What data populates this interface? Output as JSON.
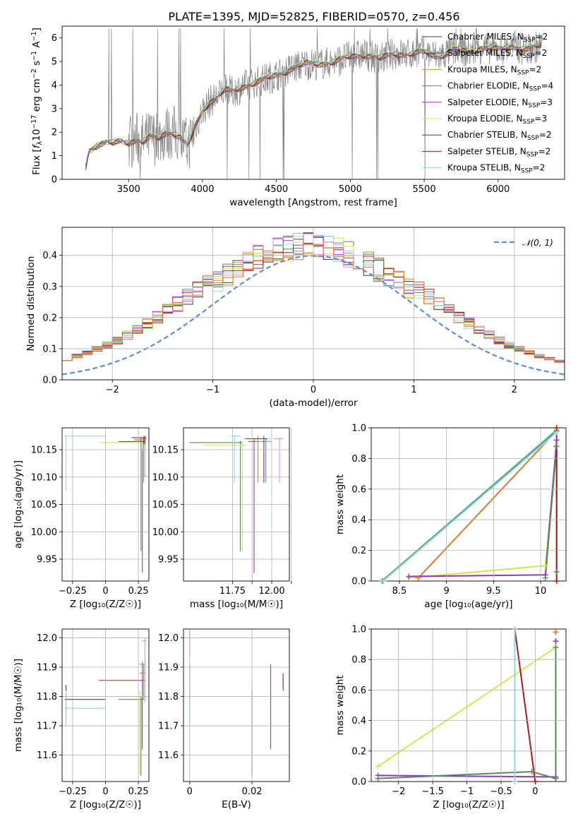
{
  "title": "PLATE=1395, MJD=52825, FIBERID=0570, z=0.456",
  "colors": {
    "chabrier_miles": "#3b3b3b",
    "salpeter_miles": "#555555",
    "kroupa_miles": "#d4862a",
    "chabrier_elodie": "#5a8a5a",
    "salpeter_elodie": "#9b30c8",
    "kroupa_elodie": "#d4e84a",
    "chabrier_stelib": "#444444",
    "salpeter_stelib": "#b01818",
    "kroupa_stelib": "#8ad8e8",
    "data": "#808080",
    "gaussian": "#5b8dd9",
    "orange": "#e07830",
    "pink": "#e890c8",
    "grid": "#b0b0b0"
  },
  "legend_spectrum": [
    {
      "label": "Chabrier MILES, N",
      "sub": "SSP",
      "tail": "=2",
      "color": "#3b3b3b"
    },
    {
      "label": "Salpeter MILES, N",
      "sub": "SSP",
      "tail": "=2",
      "color": "#555555"
    },
    {
      "label": "Kroupa MILES, N",
      "sub": "SSP",
      "tail": "=2",
      "color": "#d4862a"
    },
    {
      "label": "Chabrier ELODIE, N",
      "sub": "SSP",
      "tail": "=4",
      "color": "#5a8a5a"
    },
    {
      "label": "Salpeter ELODIE, N",
      "sub": "SSP",
      "tail": "=3",
      "color": "#9b30c8"
    },
    {
      "label": "Kroupa ELODIE, N",
      "sub": "SSP",
      "tail": "=3",
      "color": "#d4e84a"
    },
    {
      "label": "Chabrier STELIB, N",
      "sub": "SSP",
      "tail": "=2",
      "color": "#444444"
    },
    {
      "label": "Salpeter STELIB, N",
      "sub": "SSP",
      "tail": "=2",
      "color": "#b01818"
    },
    {
      "label": "Kroupa STELIB, N",
      "sub": "SSP",
      "tail": "=2",
      "color": "#8ad8e8"
    }
  ],
  "legend_hist": {
    "label": "𝒩(0, 1)"
  },
  "chart_data": [
    {
      "id": "spectrum",
      "type": "line",
      "xlabel": "wavelength [Angstrom, rest frame]",
      "ylabel": "Flux [f_λ 10^-17 erg cm^-2 s^-1 A^-1]",
      "xlim": [
        3050,
        6450
      ],
      "ylim": [
        0,
        6.5
      ],
      "xticks": [
        3500,
        4000,
        4500,
        5000,
        5500,
        6000
      ],
      "yticks": [
        0,
        1,
        2,
        3,
        4,
        5,
        6
      ],
      "model_x": [
        3200,
        3230,
        3280,
        3350,
        3400,
        3450,
        3500,
        3550,
        3600,
        3650,
        3700,
        3750,
        3800,
        3850,
        3900,
        3950,
        4000,
        4050,
        4100,
        4150,
        4200,
        4300,
        4400,
        4500,
        4600,
        4700,
        4800,
        4900,
        5000,
        5100,
        5200,
        5300,
        5400,
        5500,
        5600,
        5700,
        5800,
        5900,
        6000,
        6100,
        6200,
        6300
      ],
      "model_y": [
        0.1,
        1.2,
        1.45,
        1.6,
        1.5,
        1.6,
        1.55,
        1.7,
        1.6,
        1.8,
        1.7,
        1.95,
        2.0,
        1.8,
        1.4,
        2.2,
        2.9,
        3.3,
        3.5,
        3.8,
        3.7,
        4.0,
        4.2,
        4.4,
        4.7,
        4.9,
        4.9,
        5.0,
        5.2,
        5.3,
        5.1,
        5.35,
        5.3,
        5.4,
        5.2,
        5.5,
        5.4,
        5.6,
        5.5,
        5.65,
        5.5,
        5.7
      ],
      "series": [
        {
          "name": "Chabrier MILES, NSSP=2",
          "offset": 0.0
        },
        {
          "name": "Salpeter MILES, NSSP=2",
          "offset": 0.03
        },
        {
          "name": "Kroupa MILES, NSSP=2",
          "offset": -0.04
        },
        {
          "name": "Chabrier ELODIE, NSSP=4",
          "offset": 0.05
        },
        {
          "name": "Salpeter ELODIE, NSSP=3",
          "offset": -0.02
        },
        {
          "name": "Kroupa ELODIE, NSSP=3",
          "offset": 0.06
        },
        {
          "name": "Chabrier STELIB, NSSP=2",
          "offset": -0.05
        },
        {
          "name": "Salpeter STELIB, NSSP=2",
          "offset": 0.02
        },
        {
          "name": "Kroupa STELIB, NSSP=2",
          "offset": 0.08
        }
      ]
    },
    {
      "id": "residuals",
      "type": "histogram",
      "xlabel": "(data-model)/error",
      "ylabel": "Normed distribution",
      "xlim": [
        -2.5,
        2.5
      ],
      "ylim": [
        0,
        0.49
      ],
      "xticks": [
        -2,
        -1,
        0,
        1,
        2
      ],
      "yticks": [
        0.0,
        0.1,
        0.2,
        0.3,
        0.4
      ],
      "bin_width": 0.1,
      "gaussian": {
        "mu": 0,
        "sigma": 1
      },
      "legend_loc": "upper right"
    },
    {
      "id": "age-vs-Z",
      "type": "errorbar",
      "xlabel": "Z [log10(Z/Z☉)]",
      "ylabel": "age [log10(age/yr)]",
      "xlim": [
        -0.33,
        0.33
      ],
      "ylim": [
        9.91,
        10.19
      ],
      "xticks": [
        -0.25,
        0.0,
        0.25
      ],
      "yticks": [
        9.95,
        10.0,
        10.05,
        10.1,
        10.15
      ],
      "points": [
        {
          "x": 0.27,
          "y": 10.168,
          "ylo": 9.965,
          "yhi": 10.17,
          "xlo": 0.22,
          "xhi": 0.29,
          "color": "#5a8a5a"
        },
        {
          "x": 0.28,
          "y": 10.165,
          "ylo": 9.925,
          "yhi": 10.17,
          "xlo": 0.25,
          "xhi": 0.29,
          "color": "#9b30c8"
        },
        {
          "x": 0.29,
          "y": 10.17,
          "ylo": 10.09,
          "yhi": 10.175,
          "xlo": 0.26,
          "xhi": 0.3,
          "color": "#e07830"
        },
        {
          "x": 0.3,
          "y": 10.168,
          "ylo": 10.1,
          "yhi": 10.175,
          "xlo": 0.27,
          "xhi": 0.31,
          "color": "#e890c8"
        },
        {
          "x": 0.28,
          "y": 10.163,
          "ylo": 10.15,
          "yhi": 10.17,
          "xlo": -0.05,
          "xhi": 0.3,
          "color": "#d4e84a"
        },
        {
          "x": 0.29,
          "y": 10.165,
          "ylo": 10.16,
          "yhi": 10.17,
          "xlo": 0.1,
          "xhi": 0.3,
          "color": "#444444"
        },
        {
          "x": 0.3,
          "y": 10.172,
          "ylo": 10.16,
          "yhi": 10.175,
          "xlo": 0.2,
          "xhi": 0.31,
          "color": "#b01818"
        },
        {
          "x": -0.3,
          "y": 10.175,
          "ylo": 10.075,
          "yhi": 10.177,
          "xlo": -0.31,
          "xhi": 0.0,
          "color": "#8ad8e8"
        },
        {
          "x": -0.3,
          "y": 10.175,
          "ylo": 10.11,
          "yhi": 10.177,
          "xlo": -0.31,
          "xhi": 0.0,
          "color": "#aadde0"
        }
      ]
    },
    {
      "id": "age-vs-mass",
      "type": "errorbar",
      "xlabel": "mass [log10(M/M☉)]",
      "ylabel": "",
      "xlim": [
        11.5,
        12.04
      ],
      "ylim": [
        9.91,
        10.19
      ],
      "xticks": [
        11.75,
        11.85,
        11.95,
        12.05
      ],
      "xticklabels": [
        "11.75",
        "",
        "12.00",
        ""
      ],
      "yticks": [
        9.95,
        10.0,
        10.05,
        10.1,
        10.15
      ],
      "points": [
        {
          "x": 11.79,
          "y": 10.163,
          "ylo": 9.965,
          "yhi": 10.166,
          "xlo": 11.53,
          "xhi": 11.8,
          "color": "#5a8a5a"
        },
        {
          "x": 11.86,
          "y": 10.165,
          "ylo": 9.925,
          "yhi": 10.17,
          "xlo": 11.83,
          "xhi": 11.88,
          "color": "#9b30c8"
        },
        {
          "x": 11.88,
          "y": 10.17,
          "ylo": 10.09,
          "yhi": 10.175,
          "xlo": 11.81,
          "xhi": 11.9,
          "color": "#e07830"
        },
        {
          "x": 11.99,
          "y": 10.17,
          "ylo": 10.09,
          "yhi": 10.172,
          "xlo": 11.96,
          "xhi": 12.01,
          "color": "#e890c8"
        },
        {
          "x": 11.8,
          "y": 10.158,
          "ylo": 9.965,
          "yhi": 10.162,
          "xlo": 11.6,
          "xhi": 11.82,
          "color": "#d4e84a"
        },
        {
          "x": 11.92,
          "y": 10.165,
          "ylo": 10.09,
          "yhi": 10.17,
          "xlo": 11.87,
          "xhi": 11.95,
          "color": "#5b8dd9"
        },
        {
          "x": 11.91,
          "y": 10.17,
          "ylo": 10.09,
          "yhi": 10.175,
          "xlo": 11.82,
          "xhi": 11.93,
          "color": "#b01818"
        },
        {
          "x": 11.76,
          "y": 10.175,
          "ylo": 10.09,
          "yhi": 10.177,
          "xlo": 11.74,
          "xhi": 11.79,
          "color": "#8ad8e8"
        }
      ]
    },
    {
      "id": "weight-vs-age",
      "type": "line",
      "xlabel": "age [log10(age/yr)]",
      "ylabel": "mass weight",
      "xlim": [
        8.2,
        10.27
      ],
      "ylim": [
        0,
        1.0
      ],
      "xticks": [
        8.5,
        9.0,
        9.5,
        10.0
      ],
      "yticks": [
        0.0,
        0.2,
        0.4,
        0.6,
        0.8,
        1.0
      ],
      "series": [
        {
          "color": "#e07830",
          "x": [
            8.7,
            10.17
          ],
          "y": [
            0.02,
            0.98
          ]
        },
        {
          "color": "#8ad8e8",
          "x": [
            8.31,
            10.17
          ],
          "y": [
            0.0,
            0.99
          ]
        },
        {
          "color": "#5a8a5a",
          "x": [
            8.32,
            10.17
          ],
          "y": [
            0.0,
            0.98
          ]
        },
        {
          "color": "#aadde0",
          "x": [
            8.33,
            10.17
          ],
          "y": [
            0.0,
            0.97
          ]
        },
        {
          "color": "#d4e84a",
          "x": [
            8.6,
            10.05,
            10.17
          ],
          "y": [
            0.02,
            0.1,
            0.88
          ]
        },
        {
          "color": "#9b30c8",
          "x": [
            8.6,
            10.05,
            10.17
          ],
          "y": [
            0.03,
            0.04,
            0.92
          ]
        },
        {
          "color": "#5a8a5a",
          "x": [
            10.05,
            10.17,
            10.17
          ],
          "y": [
            0.02,
            0.88,
            0.06
          ]
        },
        {
          "color": "#b01818",
          "x": [
            10.17,
            10.17
          ],
          "y": [
            0.0,
            1.0
          ]
        }
      ]
    },
    {
      "id": "mass-vs-Z",
      "type": "errorbar",
      "xlabel": "Z [log10(Z/Z☉)]",
      "ylabel": "mass [log10(M/M☉)]",
      "xlim": [
        -0.33,
        0.33
      ],
      "ylim": [
        11.51,
        12.03
      ],
      "xticks": [
        -0.25,
        0.0,
        0.25
      ],
      "yticks": [
        11.6,
        11.7,
        11.8,
        11.9,
        12.0
      ],
      "points": [
        {
          "x": 0.27,
          "y": 11.79,
          "ylo": 11.53,
          "yhi": 11.8,
          "xlo": 0.1,
          "xhi": 0.29,
          "color": "#5a8a5a"
        },
        {
          "x": 0.28,
          "y": 11.855,
          "ylo": 11.62,
          "yhi": 11.91,
          "xlo": -0.05,
          "xhi": 0.3,
          "color": "#9b30c8"
        },
        {
          "x": 0.29,
          "y": 11.88,
          "ylo": 11.79,
          "yhi": 11.91,
          "xlo": 0.26,
          "xhi": 0.3,
          "color": "#e07830"
        },
        {
          "x": 0.3,
          "y": 11.99,
          "ylo": 11.78,
          "yhi": 12.0,
          "xlo": 0.28,
          "xhi": 0.31,
          "color": "#e890c8"
        },
        {
          "x": 0.26,
          "y": 11.8,
          "ylo": 11.53,
          "yhi": 11.82,
          "xlo": 0.1,
          "xhi": 0.29,
          "color": "#d4e84a"
        },
        {
          "x": 0.28,
          "y": 11.91,
          "ylo": 11.87,
          "yhi": 11.92,
          "xlo": 0.26,
          "xhi": 0.3,
          "color": "#5b8dd9"
        },
        {
          "x": -0.3,
          "y": 11.79,
          "ylo": 11.74,
          "yhi": 11.84,
          "xlo": -0.31,
          "xhi": 0.0,
          "color": "#444444"
        },
        {
          "x": -0.3,
          "y": 11.76,
          "ylo": 11.7,
          "yhi": 11.82,
          "xlo": -0.31,
          "xhi": 0.0,
          "color": "#8ad8e8"
        }
      ]
    },
    {
      "id": "mass-vs-ebv",
      "type": "errorbar",
      "xlabel": "E(B-V)",
      "ylabel": "",
      "xlim": [
        -0.002,
        0.032
      ],
      "ylim": [
        11.51,
        12.03
      ],
      "xticks": [
        0.0,
        0.02
      ],
      "yticks": [
        11.6,
        11.7,
        11.8,
        11.9,
        12.0
      ],
      "points": [
        {
          "x": 0.0,
          "y": 11.99,
          "ylo": 11.93,
          "yhi": 12.03,
          "color": "#e890c8"
        },
        {
          "x": 0.0,
          "y": 11.88,
          "ylo": 11.79,
          "yhi": 11.91,
          "color": "#e07830"
        },
        {
          "x": 0.0,
          "y": 11.76,
          "ylo": 11.7,
          "yhi": 11.84,
          "color": "#8ad8e8"
        },
        {
          "x": 0.02,
          "y": 11.8,
          "ylo": 11.53,
          "yhi": 11.85,
          "color": "#d4e84a"
        },
        {
          "x": 0.02,
          "y": 11.78,
          "ylo": 11.53,
          "yhi": 11.82,
          "color": "#5a8a5a"
        },
        {
          "x": 0.026,
          "y": 11.855,
          "ylo": 11.62,
          "yhi": 11.91,
          "color": "#9b30c8"
        },
        {
          "x": 0.03,
          "y": 11.85,
          "ylo": 11.82,
          "yhi": 11.88,
          "color": "#b01818"
        }
      ]
    },
    {
      "id": "weight-vs-Z",
      "type": "line",
      "xlabel": "Z [log10(Z/Z☉)]",
      "ylabel": "mass weight",
      "xlim": [
        -2.4,
        0.45
      ],
      "ylim": [
        0,
        1.0
      ],
      "xticks": [
        -2.0,
        -1.5,
        -1.0,
        -0.5,
        0.0
      ],
      "yticks": [
        0.0,
        0.2,
        0.4,
        0.6,
        0.8,
        1.0
      ],
      "series": [
        {
          "color": "#d4e84a",
          "x": [
            -2.3,
            0.3
          ],
          "y": [
            0.1,
            0.88
          ]
        },
        {
          "color": "#9b30c8",
          "x": [
            -2.3,
            0.3
          ],
          "y": [
            0.04,
            0.03
          ]
        },
        {
          "color": "#5a8a5a",
          "x": [
            -2.3,
            -0.05,
            0.3
          ],
          "y": [
            0.02,
            0.065,
            0.02
          ]
        },
        {
          "color": "#b01818",
          "x": [
            -0.3,
            0.0
          ],
          "y": [
            1.0,
            0.0
          ]
        },
        {
          "color": "#8ad8e8",
          "x": [
            -0.3,
            -0.3
          ],
          "y": [
            0.0,
            1.0
          ]
        },
        {
          "color": "#5a8a5a",
          "x": [
            0.3,
            0.3
          ],
          "y": [
            0.02,
            0.88
          ]
        },
        {
          "color": "#e07830",
          "x": [
            0.3,
            0.3
          ],
          "y": [
            0.98,
            0.98
          ]
        },
        {
          "color": "#9b30c8",
          "x": [
            0.3,
            0.3
          ],
          "y": [
            0.92,
            0.92
          ]
        }
      ]
    }
  ]
}
